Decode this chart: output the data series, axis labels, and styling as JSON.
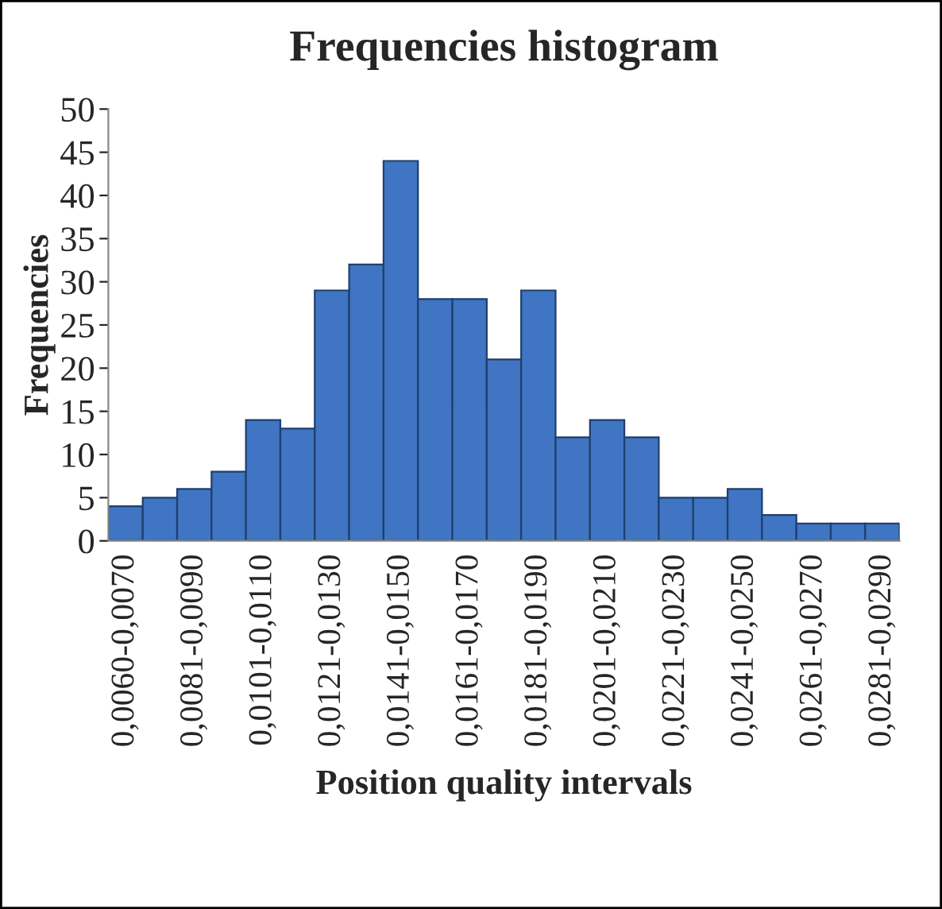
{
  "chart_data": {
    "type": "bar",
    "title": "Frequencies histogram",
    "xlabel": "Position quality intervals",
    "ylabel": "Frequencies",
    "categories": [
      "0,0060-0,0070",
      null,
      "0,0081-0,0090",
      null,
      "0,0101-0,0110",
      null,
      "0,0121-0,0130",
      null,
      "0,0141-0,0150",
      null,
      "0,0161-0,0170",
      null,
      "0,0181-0,0190",
      null,
      "0,0201-0,0210",
      null,
      "0,0221-0,0230",
      null,
      "0,0241-0,0250",
      null,
      "0,0261-0,0270",
      null,
      "0,0281-0,0290"
    ],
    "values": [
      4,
      5,
      6,
      8,
      14,
      13,
      29,
      32,
      44,
      28,
      28,
      21,
      29,
      12,
      14,
      12,
      5,
      5,
      6,
      3,
      2,
      2,
      2
    ],
    "color": "#3f75c2",
    "ylim": [
      0,
      50
    ],
    "yticks": [
      0,
      5,
      10,
      15,
      20,
      25,
      30,
      35,
      40,
      45,
      50
    ],
    "grid": false,
    "legend": false
  }
}
